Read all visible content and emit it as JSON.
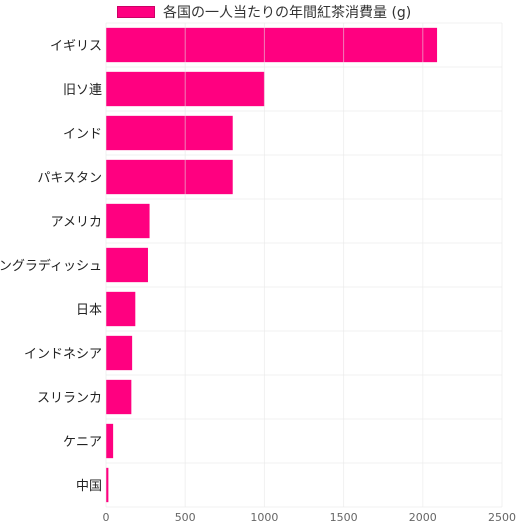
{
  "colors": {
    "bar": "#ff0080",
    "grid": "#e6e6e6",
    "axis_text": "#666666"
  },
  "chart_data": {
    "type": "bar",
    "orientation": "horizontal",
    "categories": [
      "イギリス",
      "旧ソ連",
      "インド",
      "パキスタン",
      "アメリカ",
      "バングラディッシュ",
      "日本",
      "インドネシア",
      "スリランカ",
      "ケニア",
      "中国"
    ],
    "series": [
      {
        "name": "各国の一人当たりの年間紅茶消費量 (g)",
        "values": [
          2090,
          1000,
          800,
          800,
          275,
          265,
          185,
          165,
          160,
          45,
          15
        ]
      }
    ],
    "xlim": [
      0,
      2500
    ],
    "xticks": [
      0,
      500,
      1000,
      1500,
      2000,
      2500
    ],
    "grid": true,
    "legend": "top"
  }
}
